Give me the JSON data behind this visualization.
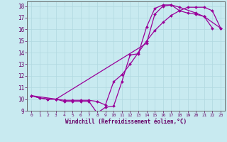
{
  "xlabel": "Windchill (Refroidissement éolien,°C)",
  "bg_color": "#c8eaf0",
  "line_color": "#990099",
  "grid_color": "#b0d8e0",
  "axis_color": "#555555",
  "text_color": "#660066",
  "xlim": [
    -0.5,
    23.5
  ],
  "ylim": [
    9,
    18.4
  ],
  "xticks": [
    0,
    1,
    2,
    3,
    4,
    5,
    6,
    7,
    8,
    9,
    10,
    11,
    12,
    13,
    14,
    15,
    16,
    17,
    18,
    19,
    20,
    21,
    22,
    23
  ],
  "yticks": [
    9,
    10,
    11,
    12,
    13,
    14,
    15,
    16,
    17,
    18
  ],
  "line1_x": [
    0,
    1,
    2,
    3,
    4,
    5,
    6,
    7,
    8,
    9,
    10,
    11,
    12,
    13,
    14,
    15,
    16,
    17,
    18,
    19,
    20,
    21,
    22
  ],
  "line1_y": [
    10.3,
    10.1,
    10.0,
    10.0,
    9.8,
    9.8,
    9.8,
    9.8,
    8.8,
    9.3,
    9.4,
    11.5,
    13.8,
    13.9,
    16.2,
    17.8,
    18.1,
    18.1,
    17.6,
    17.4,
    17.3,
    17.1,
    16.1
  ],
  "line2_x": [
    0,
    1,
    2,
    3,
    4,
    5,
    6,
    7,
    8,
    9,
    10,
    11,
    12,
    13,
    14,
    15,
    16,
    17,
    18,
    19,
    20,
    21,
    22,
    23
  ],
  "line2_y": [
    10.3,
    10.1,
    10.0,
    10.0,
    9.9,
    9.9,
    9.9,
    9.9,
    9.8,
    9.5,
    11.5,
    12.1,
    13.0,
    14.0,
    15.0,
    15.9,
    16.6,
    17.2,
    17.6,
    17.9,
    17.9,
    17.9,
    17.6,
    16.1
  ],
  "line3_x": [
    0,
    3,
    14,
    15,
    16,
    17,
    18,
    20,
    21,
    23
  ],
  "line3_y": [
    10.3,
    10.0,
    14.8,
    17.3,
    18.0,
    18.1,
    17.9,
    17.4,
    17.1,
    16.1
  ]
}
